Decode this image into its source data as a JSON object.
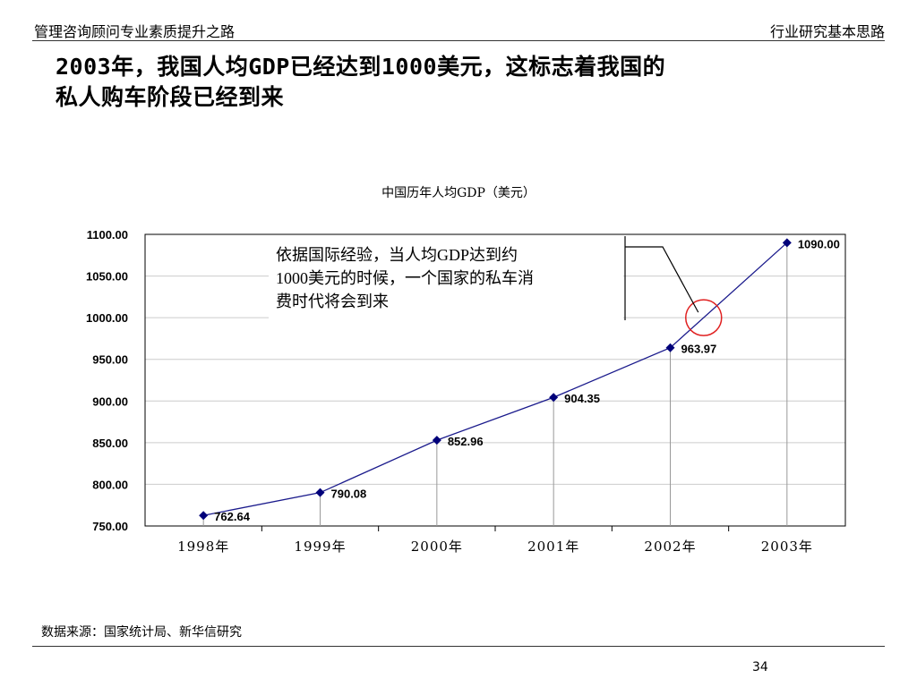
{
  "header": {
    "left_text": "管理咨询顾问专业素质提升之路",
    "right_text": "行业研究基本思路"
  },
  "slide": {
    "title_line1": "2003年，我国人均GDP已经达到1000美元，这标志着我国的",
    "title_line2": "私人购车阶段已经到来",
    "annotation_line1": "依据国际经验，当人均GDP达到约",
    "annotation_line2": "1000美元的时候，一个国家的私车消",
    "annotation_line3": "费时代将会到来",
    "source": "数据来源：国家统计局、新华信研究",
    "page_number": "34"
  },
  "chart_data": {
    "type": "line",
    "title": "中国历年人均GDP（美元）",
    "categories": [
      "1998年",
      "1999年",
      "2000年",
      "2001年",
      "2002年",
      "2003年"
    ],
    "series": [
      {
        "values": [
          762.64,
          790.08,
          852.96,
          904.35,
          963.97,
          1090.0
        ]
      }
    ],
    "data_labels": [
      "762.64",
      "790.08",
      "852.96",
      "904.35",
      "963.97",
      "1090.00"
    ],
    "y_ticks": [
      750,
      800,
      850,
      900,
      950,
      1000,
      1050,
      1100
    ],
    "y_tick_labels": [
      "750.00",
      "800.00",
      "850.00",
      "900.00",
      "950.00",
      "1000.00",
      "1050.00",
      "1100.00"
    ],
    "ylim": [
      750,
      1100
    ],
    "grid": true,
    "drop_lines": true,
    "highlight_value": 1000,
    "colors": {
      "line": "#1a1a8c",
      "marker": "#00007a",
      "grid": "#cccccc",
      "circle": "#e02020"
    }
  }
}
